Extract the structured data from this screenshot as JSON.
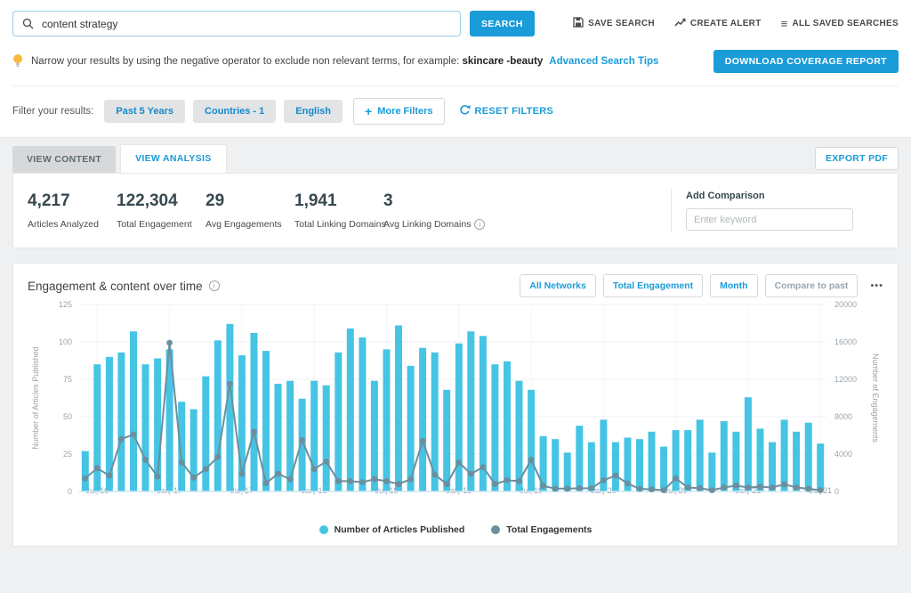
{
  "colors": {
    "accent": "#1a9cd8",
    "bar": "#46c4e4",
    "line": "#6d8e9d",
    "grid": "#eef1f4",
    "axis_line": "#cfe6f3",
    "tick_text": "#9aa5ad"
  },
  "icons": {
    "saved_list": "≡",
    "plus": "+",
    "info": "i",
    "menu_dots": "•••"
  },
  "header": {
    "search_value": "content strategy",
    "search_button": "SEARCH",
    "actions": [
      {
        "label": "SAVE SEARCH"
      },
      {
        "label": "CREATE ALERT"
      },
      {
        "label": "ALL SAVED SEARCHES"
      }
    ]
  },
  "tip": {
    "text": "Narrow your results by using the negative operator to exclude non relevant terms, for example:",
    "example": "skincare -beauty",
    "link": "Advanced Search Tips",
    "download_button": "DOWNLOAD COVERAGE REPORT"
  },
  "filters": {
    "label": "Filter your results:",
    "chips": [
      "Past 5 Years",
      "Countries - 1",
      "English"
    ],
    "more_filters": "More Filters",
    "reset": "RESET FILTERS"
  },
  "tabs": {
    "content": "VIEW CONTENT",
    "analysis": "VIEW ANALYSIS",
    "export": "EXPORT PDF"
  },
  "stats": {
    "items": [
      {
        "value": "4,217",
        "label": "Articles Analyzed"
      },
      {
        "value": "122,304",
        "label": "Total Engagement"
      },
      {
        "value": "29",
        "label": "Avg Engagements"
      },
      {
        "value": "1,941",
        "label": "Total Linking Domains"
      },
      {
        "value": "3",
        "label": "Avg Linking Domains"
      }
    ],
    "comparison": {
      "label": "Add Comparison",
      "placeholder": "Enter keyword"
    }
  },
  "chart": {
    "title": "Engagement & content over time",
    "buttons": [
      "All Networks",
      "Total Engagement",
      "Month"
    ],
    "compare_button": "Compare to past"
  },
  "chart_data": {
    "type": "bar",
    "title": "Engagement & content over time",
    "categories": [
      "Jun '16",
      "Jul '16",
      "Aug '16",
      "Sep '16",
      "Oct '16",
      "Nov '16",
      "Dec '16",
      "Jan '17",
      "Feb '17",
      "Mar '17",
      "Apr '17",
      "May '17",
      "Jun '17",
      "Jul '17",
      "Aug '17",
      "Sep '17",
      "Oct '17",
      "Nov '17",
      "Dec '17",
      "Jan '18",
      "Feb '18",
      "Mar '18",
      "Apr '18",
      "May '18",
      "Jun '18",
      "Jul '18",
      "Aug '18",
      "Sep '18",
      "Oct '18",
      "Nov '18",
      "Dec '18",
      "Jan '19",
      "Feb '19",
      "Mar '19",
      "Apr '19",
      "May '19",
      "Jun '19",
      "Jul '19",
      "Aug '19",
      "Sep '19",
      "Oct '19",
      "Nov '19",
      "Dec '19",
      "Jan '20",
      "Feb '20",
      "Mar '20",
      "Apr '20",
      "May '20",
      "Jun '20",
      "Jul '20",
      "Aug '20",
      "Sep '20",
      "Oct '20",
      "Nov '20",
      "Dec '20",
      "Jan '21",
      "Feb '21",
      "Mar '21",
      "Apr '21",
      "May '21",
      "Jun '21",
      "Jul '21"
    ],
    "series": [
      {
        "name": "Number of Articles Published",
        "type": "bar",
        "axis": "left",
        "color": "#46c4e4",
        "values": [
          27,
          85,
          90,
          93,
          107,
          85,
          89,
          95,
          60,
          55,
          77,
          101,
          112,
          91,
          106,
          94,
          72,
          74,
          62,
          74,
          71,
          93,
          109,
          103,
          74,
          95,
          111,
          84,
          96,
          93,
          68,
          99,
          107,
          104,
          85,
          87,
          74,
          68,
          37,
          35,
          26,
          44,
          33,
          48,
          33,
          36,
          35,
          40,
          30,
          41,
          41,
          48,
          26,
          47,
          40,
          63,
          42,
          33,
          48,
          40,
          46,
          32
        ]
      },
      {
        "name": "Total Engagements",
        "type": "line",
        "axis": "right",
        "color": "#6d8e9d",
        "values": [
          1400,
          2500,
          1700,
          5600,
          6100,
          3400,
          1600,
          15900,
          3100,
          1500,
          2400,
          3700,
          11500,
          1900,
          6400,
          900,
          1900,
          1300,
          5500,
          2400,
          3200,
          1100,
          1100,
          1000,
          1300,
          1100,
          800,
          1300,
          5400,
          1800,
          800,
          3100,
          1900,
          2600,
          800,
          1200,
          1100,
          3400,
          600,
          300,
          300,
          340,
          340,
          1200,
          1700,
          860,
          290,
          230,
          140,
          1400,
          430,
          340,
          140,
          430,
          630,
          430,
          510,
          430,
          770,
          430,
          290,
          140
        ]
      }
    ],
    "left_axis": {
      "label": "Number of Articles Published",
      "ticks": [
        0,
        25,
        50,
        75,
        100,
        125
      ],
      "max": 125
    },
    "right_axis": {
      "label": "Number of Engagements",
      "ticks": [
        0,
        4000,
        8000,
        12000,
        16000,
        20000
      ],
      "max": 20000
    },
    "x_tick_labels": [
      "Jul '16",
      "Jan '17",
      "Jul '17",
      "Jan '18",
      "Jul '18",
      "Jan '19",
      "Jul '19",
      "Jan '20",
      "Jul '20",
      "Jan '21",
      "Jul '21"
    ],
    "grid": true,
    "legend_position": "bottom"
  }
}
